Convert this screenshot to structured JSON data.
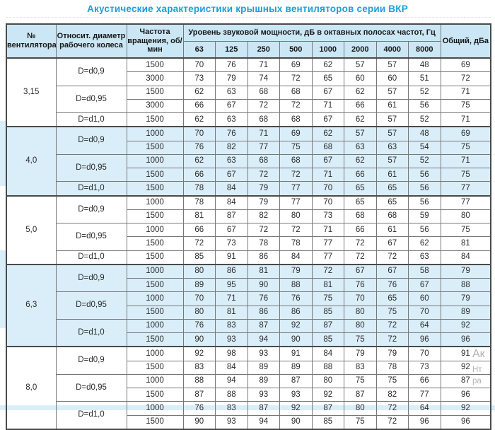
{
  "title": "Акустические характеристики крышных вентиляторов серии ВКР",
  "colors": {
    "title_accent": "#1b9fd8",
    "header_bg": "#cbe7f5",
    "band_bg": "#daeef9",
    "border_dark": "#4a4a4a",
    "border_light": "#777777"
  },
  "watermark": {
    "fragments": [
      "Ак",
      "Нт",
      "ра"
    ]
  },
  "table": {
    "headers": {
      "fan_number": "№ вентилятора",
      "rel_diameter": "Относит. диаметр рабочего колеса",
      "rpm": "Частота вращения, об/мин",
      "spl_group": "Уровень звуковой мощности, дБ в октавных полосах частот, Гц",
      "freq_bands": [
        "63",
        "125",
        "250",
        "500",
        "1000",
        "2000",
        "4000",
        "8000"
      ],
      "total": "Общий, дБа"
    },
    "groups": [
      {
        "fan": "3,15",
        "band": false,
        "subgroups": [
          {
            "diameter": "D=d0,9",
            "rows": [
              {
                "rpm": "1500",
                "values": [
                  70,
                  76,
                  71,
                  69,
                  62,
                  57,
                  57,
                  48
                ],
                "total": 69
              },
              {
                "rpm": "3000",
                "values": [
                  73,
                  79,
                  74,
                  72,
                  65,
                  60,
                  60,
                  51
                ],
                "total": 72
              }
            ]
          },
          {
            "diameter": "D=d0,95",
            "rows": [
              {
                "rpm": "1500",
                "values": [
                  62,
                  63,
                  68,
                  68,
                  67,
                  62,
                  57,
                  52
                ],
                "total": 71
              },
              {
                "rpm": "3000",
                "values": [
                  66,
                  67,
                  72,
                  72,
                  71,
                  66,
                  61,
                  56
                ],
                "total": 75
              }
            ]
          },
          {
            "diameter": "D=d1,0",
            "rows": [
              {
                "rpm": "1500",
                "values": [
                  62,
                  63,
                  68,
                  68,
                  67,
                  62,
                  57,
                  52
                ],
                "total": 71
              }
            ]
          }
        ]
      },
      {
        "fan": "4,0",
        "band": true,
        "subgroups": [
          {
            "diameter": "D=d0,9",
            "rows": [
              {
                "rpm": "1000",
                "values": [
                  70,
                  76,
                  71,
                  69,
                  62,
                  57,
                  57,
                  48
                ],
                "total": 69
              },
              {
                "rpm": "1500",
                "values": [
                  76,
                  82,
                  77,
                  75,
                  68,
                  63,
                  63,
                  54
                ],
                "total": 75
              }
            ]
          },
          {
            "diameter": "D=d0,95",
            "rows": [
              {
                "rpm": "1000",
                "values": [
                  62,
                  63,
                  68,
                  68,
                  67,
                  62,
                  57,
                  52
                ],
                "total": 71
              },
              {
                "rpm": "1500",
                "values": [
                  66,
                  67,
                  72,
                  72,
                  71,
                  66,
                  61,
                  56
                ],
                "total": 75
              }
            ]
          },
          {
            "diameter": "D=d1,0",
            "rows": [
              {
                "rpm": "1500",
                "values": [
                  78,
                  84,
                  79,
                  77,
                  70,
                  65,
                  65,
                  56
                ],
                "total": 77
              }
            ]
          }
        ]
      },
      {
        "fan": "5,0",
        "band": false,
        "subgroups": [
          {
            "diameter": "D=d0,9",
            "rows": [
              {
                "rpm": "1000",
                "values": [
                  78,
                  84,
                  79,
                  77,
                  70,
                  65,
                  65,
                  56
                ],
                "total": 77
              },
              {
                "rpm": "1500",
                "values": [
                  81,
                  87,
                  82,
                  80,
                  73,
                  68,
                  68,
                  59
                ],
                "total": 80
              }
            ]
          },
          {
            "diameter": "D=d0,95",
            "rows": [
              {
                "rpm": "1000",
                "values": [
                  66,
                  67,
                  72,
                  72,
                  71,
                  66,
                  61,
                  56
                ],
                "total": 75
              },
              {
                "rpm": "1500",
                "values": [
                  72,
                  73,
                  78,
                  78,
                  77,
                  72,
                  67,
                  62
                ],
                "total": 81
              }
            ]
          },
          {
            "diameter": "D=d1,0",
            "rows": [
              {
                "rpm": "1500",
                "values": [
                  85,
                  91,
                  86,
                  84,
                  77,
                  72,
                  72,
                  63
                ],
                "total": 84
              }
            ]
          }
        ]
      },
      {
        "fan": "6,3",
        "band": true,
        "subgroups": [
          {
            "diameter": "D=d0,9",
            "rows": [
              {
                "rpm": "1000",
                "values": [
                  80,
                  86,
                  81,
                  79,
                  72,
                  67,
                  67,
                  58
                ],
                "total": 79
              },
              {
                "rpm": "1500",
                "values": [
                  89,
                  95,
                  90,
                  88,
                  81,
                  76,
                  76,
                  67
                ],
                "total": 88
              }
            ]
          },
          {
            "diameter": "D=d0,95",
            "rows": [
              {
                "rpm": "1000",
                "values": [
                  70,
                  71,
                  76,
                  76,
                  75,
                  70,
                  65,
                  60
                ],
                "total": 79
              },
              {
                "rpm": "1500",
                "values": [
                  80,
                  81,
                  86,
                  86,
                  85,
                  80,
                  75,
                  70
                ],
                "total": 89
              }
            ]
          },
          {
            "diameter": "D=d1,0",
            "rows": [
              {
                "rpm": "1000",
                "values": [
                  76,
                  83,
                  87,
                  92,
                  87,
                  80,
                  72,
                  64
                ],
                "total": 92
              },
              {
                "rpm": "1500",
                "values": [
                  90,
                  93,
                  94,
                  90,
                  85,
                  75,
                  72,
                  96
                ],
                "total": 96
              }
            ]
          }
        ]
      },
      {
        "fan": "8,0",
        "band": false,
        "subgroups": [
          {
            "diameter": "D=d0,9",
            "rows": [
              {
                "rpm": "1000",
                "values": [
                  92,
                  98,
                  93,
                  91,
                  84,
                  79,
                  79,
                  70
                ],
                "total": 91
              },
              {
                "rpm": "1500",
                "values": [
                  83,
                  84,
                  89,
                  89,
                  88,
                  83,
                  78,
                  73
                ],
                "total": 92
              }
            ]
          },
          {
            "diameter": "D=d0,95",
            "rows": [
              {
                "rpm": "1000",
                "values": [
                  88,
                  94,
                  89,
                  87,
                  80,
                  75,
                  75,
                  66
                ],
                "total": 87
              },
              {
                "rpm": "1500",
                "values": [
                  87,
                  88,
                  93,
                  93,
                  92,
                  87,
                  82,
                  77
                ],
                "total": 96
              }
            ]
          },
          {
            "diameter": "D=d1,0",
            "rows": [
              {
                "rpm": "1000",
                "values": [
                  76,
                  83,
                  87,
                  92,
                  87,
                  80,
                  72,
                  64
                ],
                "total": 92
              },
              {
                "rpm": "1500",
                "values": [
                  90,
                  93,
                  94,
                  90,
                  85,
                  75,
                  72,
                  96
                ],
                "total": 96
              }
            ]
          }
        ]
      }
    ]
  }
}
